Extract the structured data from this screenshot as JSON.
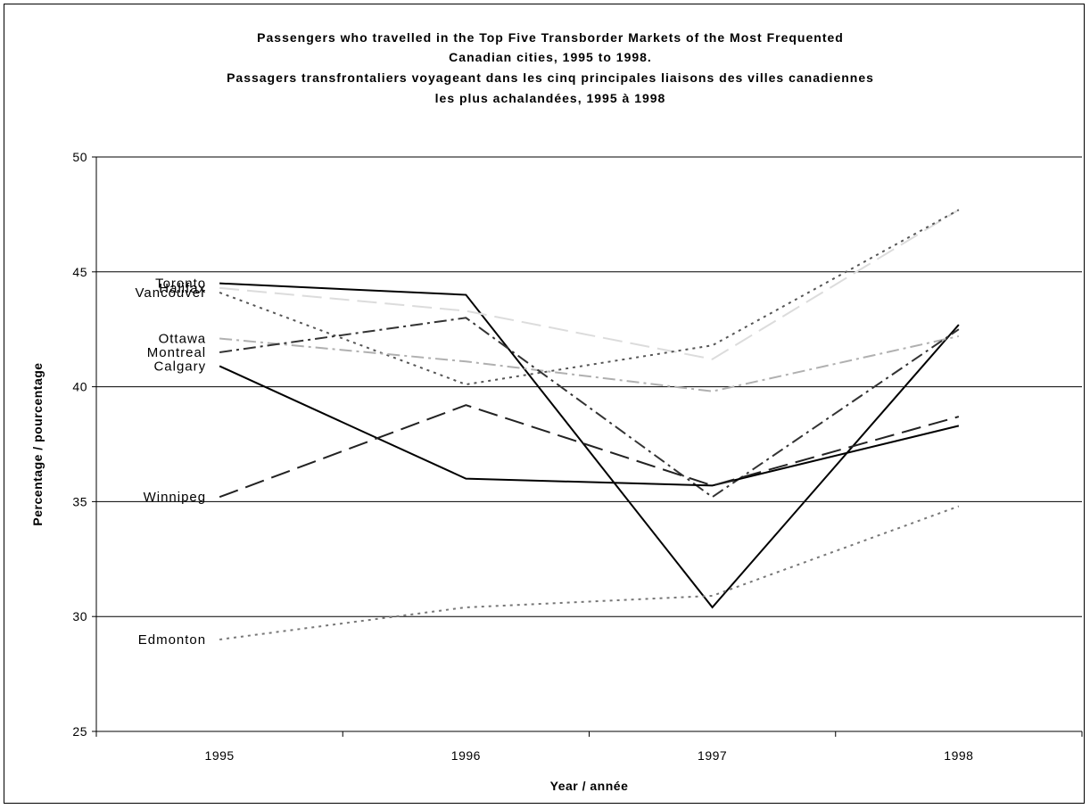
{
  "chart_data": {
    "type": "line",
    "title_lines": [
      "Passengers who travelled in the Top Five Transborder Markets of the Most Frequented",
      "Canadian cities, 1995 to 1998.",
      "Passagers transfrontaliers voyageant dans les cinq principales liaisons des villes canadiennes",
      "les plus achalandées, 1995 à 1998"
    ],
    "xlabel": "Year / année",
    "ylabel": "Percentage / pourcentage",
    "categories": [
      "1995",
      "1996",
      "1997",
      "1998"
    ],
    "ylim": [
      25,
      50
    ],
    "yticks": [
      "25",
      "30",
      "35",
      "40",
      "45",
      "50"
    ],
    "grid": true,
    "series": [
      {
        "name": "Toronto",
        "values": [
          44.5,
          44.0,
          30.4,
          42.7
        ],
        "color": "#000000",
        "dash": "none"
      },
      {
        "name": "Halifax",
        "values": [
          44.3,
          43.3,
          41.2,
          47.7
        ],
        "color": "#dcdcdc",
        "dash": "long-dash"
      },
      {
        "name": "Vancouver",
        "values": [
          44.1,
          40.1,
          41.8,
          47.7
        ],
        "color": "#555555",
        "dash": "dot"
      },
      {
        "name": "Ottawa",
        "values": [
          42.1,
          41.1,
          39.8,
          42.2
        ],
        "color": "#b0b0b0",
        "dash": "dash-dot"
      },
      {
        "name": "Montreal",
        "values": [
          41.5,
          43.0,
          35.2,
          42.5
        ],
        "color": "#333333",
        "dash": "dash-dot"
      },
      {
        "name": "Calgary",
        "values": [
          40.9,
          36.0,
          35.7,
          38.3
        ],
        "color": "#000000",
        "dash": "none"
      },
      {
        "name": "Winnipeg",
        "values": [
          35.2,
          39.2,
          35.7,
          38.7
        ],
        "color": "#222222",
        "dash": "long-dash"
      },
      {
        "name": "Edmonton",
        "values": [
          29.0,
          30.4,
          30.9,
          34.8
        ],
        "color": "#777777",
        "dash": "dot"
      }
    ]
  }
}
